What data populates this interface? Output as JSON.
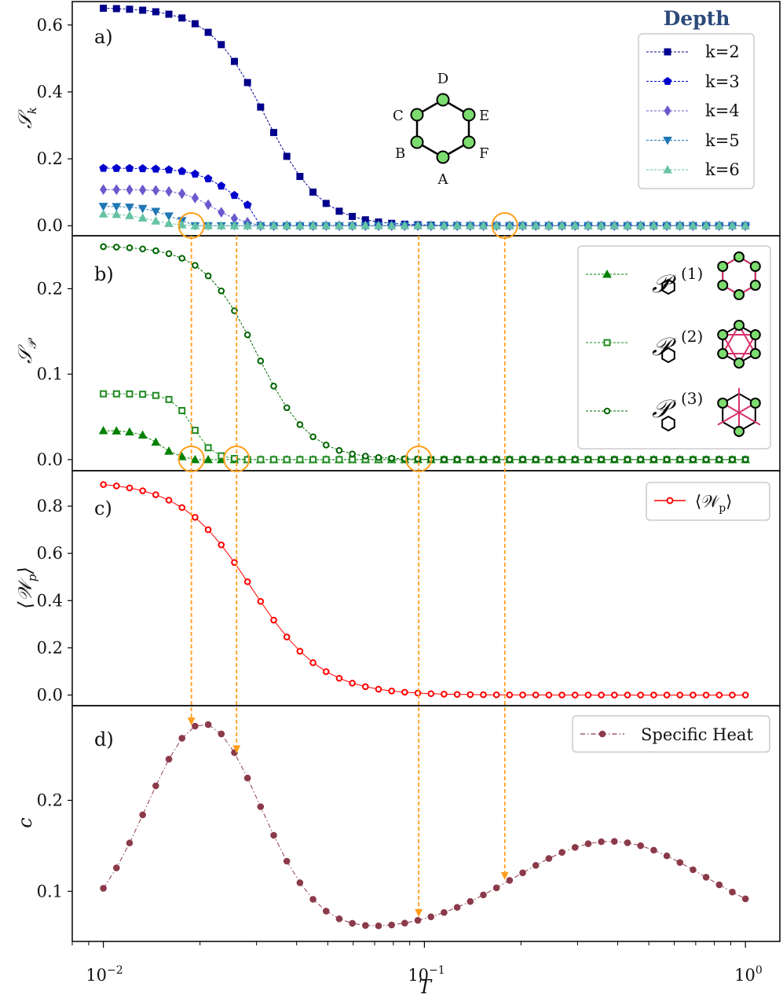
{
  "chart_data": [
    {
      "panel": "a)",
      "type": "line",
      "ylabel": "S_k",
      "ylabel_main": "𝒮",
      "ylabel_sub": "k",
      "ylim": [
        -0.03,
        0.67
      ],
      "yticks": [
        0.0,
        0.2,
        0.4,
        0.6
      ],
      "ytick_labels": [
        "0.0",
        "0.2",
        "0.4",
        "0.6"
      ],
      "legend_title": "Depth",
      "legend_position": "upper-right",
      "hexagon_labels": [
        "D",
        "E",
        "F",
        "A",
        "B",
        "C"
      ],
      "series": [
        {
          "name": "k=2",
          "marker": "square",
          "color": "#00008b",
          "start": 0.652,
          "tc": 0.032,
          "width": 0.22,
          "end": 0.003
        },
        {
          "name": "k=3",
          "marker": "pentagon",
          "color": "#0000cd",
          "start": 0.172,
          "tc": 0.026,
          "width": 0.15,
          "end": 0.029
        },
        {
          "name": "k=4",
          "marker": "diamond",
          "color": "#6a5acd",
          "start": 0.108,
          "tc": 0.022,
          "width": 0.12,
          "end": 0.029
        },
        {
          "name": "k=5",
          "marker": "triangle-down",
          "color": "#1f77b4",
          "start": 0.058,
          "tc": 0.016,
          "width": 0.1,
          "end": 0.019
        },
        {
          "name": "k=6",
          "marker": "triangle-up",
          "color": "#66c2a5",
          "start": 0.036,
          "tc": 0.014,
          "width": 0.1,
          "end": 0.019
        }
      ],
      "circled_T": [
        0.0188,
        0.178
      ]
    },
    {
      "panel": "b)",
      "type": "line",
      "ylabel": "S_P",
      "ylabel_main": "𝒮",
      "ylabel_sub": "𝒫",
      "ylim": [
        -0.013,
        0.262
      ],
      "yticks": [
        0.0,
        0.1,
        0.2
      ],
      "ytick_labels": [
        "0.0",
        "0.1",
        "0.2"
      ],
      "legend_position": "upper-right",
      "legend_symbol": "𝒫",
      "series": [
        {
          "name": "𝒫⬡(1)",
          "superscript": "(1)",
          "marker": "triangle-up",
          "fill": "#008000",
          "color": "#008000",
          "start": 0.034,
          "tc": 0.015,
          "width": 0.08,
          "end": 0.0188
        },
        {
          "name": "𝒫⬡(2)",
          "superscript": "(2)",
          "marker": "square-open",
          "fill": "#ffffff",
          "color": "#228b22",
          "start": 0.077,
          "tc": 0.019,
          "width": 0.08,
          "end": 0.026
        },
        {
          "name": "𝒫⬡(3)",
          "superscript": "(3)",
          "marker": "circle-open",
          "fill": "#ffffff",
          "color": "#006400",
          "start": 0.25,
          "tc": 0.03,
          "width": 0.21,
          "end": 0.096
        }
      ],
      "circled_T": [
        0.0188,
        0.026,
        0.096
      ]
    },
    {
      "panel": "c)",
      "type": "line",
      "ylabel": "⟨W_p⟩",
      "ylabel_main": "⟨𝒲",
      "ylabel_sub": "p",
      "ylabel_close": "⟩",
      "ylim": [
        -0.045,
        0.95
      ],
      "yticks": [
        0.0,
        0.2,
        0.4,
        0.6,
        0.8
      ],
      "ytick_labels": [
        "0.0",
        "0.2",
        "0.4",
        "0.6",
        "0.8"
      ],
      "legend_position": "upper-right",
      "series": [
        {
          "name": "⟨𝒲p⟩",
          "legend_main": "⟨𝒲",
          "legend_sub": "p",
          "legend_close": "⟩",
          "marker": "circle-open",
          "color": "#ff0000",
          "start": 0.905,
          "tc": 0.029,
          "width": 0.28,
          "end": 0.0
        }
      ]
    },
    {
      "panel": "d)",
      "type": "line",
      "ylabel": "c",
      "ylim": [
        0.045,
        0.304
      ],
      "yticks": [
        0.1,
        0.2
      ],
      "ytick_labels": [
        "0.1",
        "0.2"
      ],
      "legend_position": "upper-right",
      "series": [
        {
          "name": "Specific Heat",
          "marker": "circle",
          "color": "#8b3a4a",
          "peaks": [
            {
              "T": 0.0205,
              "c": 0.284,
              "logw": 0.25
            },
            {
              "T": 0.38,
              "c": 0.155,
              "logw": 0.42
            }
          ],
          "baseline": 0.055
        }
      ]
    }
  ],
  "x_axis": {
    "label": "T",
    "scale": "log",
    "xlim": [
      0.008,
      1.28
    ],
    "n_points": 50,
    "x_min": 0.01,
    "x_max": 1.0,
    "ticks": [
      {
        "value": 0.01,
        "base": "10",
        "exp": "−2"
      },
      {
        "value": 0.1,
        "base": "10",
        "exp": "−1"
      },
      {
        "value": 1.0,
        "base": "10",
        "exp": "0"
      }
    ]
  },
  "arrows_T": [
    0.0188,
    0.026,
    0.096,
    0.178
  ],
  "colors": {
    "highlight": "#ff9f1c",
    "frame": "#000000",
    "plaquette": "#d6336c",
    "node": "#7ddc6f"
  }
}
